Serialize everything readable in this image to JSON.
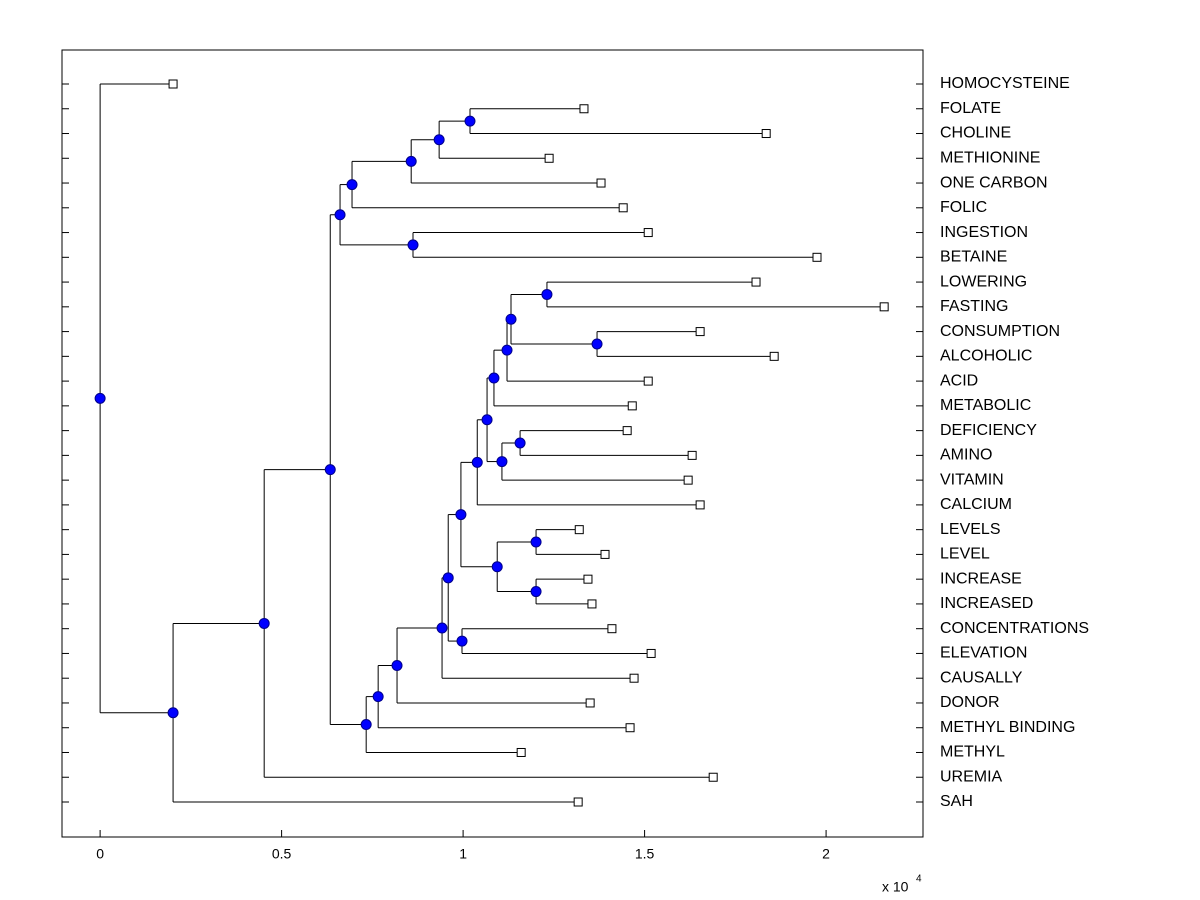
{
  "chart_data": {
    "type": "dendrogram",
    "xlim": [
      -0.105,
      2.267
    ],
    "xticks": [
      0,
      0.5,
      1,
      1.5,
      2
    ],
    "x_scale_label": "x 10",
    "x_scale_exponent": "4",
    "node_color": "#0000ff",
    "leaf_color": "#ffffff",
    "tree": {
      "x": 0,
      "children": [
        {
          "label": "HOMOCYSTEINE",
          "x": 0.201
        },
        {
          "x": 0.201,
          "children": [
            {
              "x": 0.452,
              "children": [
                {
                  "x": 0.634,
                  "children": [
                    {
                      "x": 0.661,
                      "children": [
                        {
                          "x": 0.694,
                          "children": [
                            {
                              "x": 0.857,
                              "children": [
                                {
                                  "x": 0.934,
                                  "children": [
                                    {
                                      "x": 1.019,
                                      "children": [
                                        {
                                          "label": "FOLATE",
                                          "x": 1.333
                                        },
                                        {
                                          "label": "CHOLINE",
                                          "x": 1.835
                                        }
                                      ]
                                    },
                                    {
                                      "label": "METHIONINE",
                                      "x": 1.237
                                    }
                                  ]
                                },
                                {
                                  "label": "ONE CARBON",
                                  "x": 1.38
                                }
                              ]
                            },
                            {
                              "label": "FOLIC",
                              "x": 1.441
                            }
                          ]
                        },
                        {
                          "x": 0.862,
                          "children": [
                            {
                              "label": "INGESTION",
                              "x": 1.51
                            },
                            {
                              "label": "BETAINE",
                              "x": 1.975
                            }
                          ]
                        }
                      ]
                    },
                    {
                      "x": 0.733,
                      "children": [
                        {
                          "x": 0.766,
                          "children": [
                            {
                              "x": 0.818,
                              "children": [
                                {
                                  "x": 0.942,
                                  "children": [
                                    {
                                      "x": 0.959,
                                      "children": [
                                        {
                                          "x": 0.994,
                                          "children": [
                                            {
                                              "x": 1.039,
                                              "children": [
                                                {
                                                  "x": 1.066,
                                                  "children": [
                                                    {
                                                      "x": 1.085,
                                                      "children": [
                                                        {
                                                          "x": 1.121,
                                                          "children": [
                                                            {
                                                              "x": 1.132,
                                                              "children": [
                                                                {
                                                                  "x": 1.231,
                                                                  "children": [
                                                                    {
                                                                      "label": "LOWERING",
                                                                      "x": 1.807
                                                                    },
                                                                    {
                                                                      "label": "FASTING",
                                                                      "x": 2.16
                                                                    }
                                                                  ]
                                                                },
                                                                {
                                                                  "x": 1.369,
                                                                  "children": [
                                                                    {
                                                                      "label": "CONSUMPTION",
                                                                      "x": 1.653
                                                                    },
                                                                    {
                                                                      "label": "ALCOHOLIC",
                                                                      "x": 1.857
                                                                    }
                                                                  ]
                                                                }
                                                              ]
                                                            },
                                                            {
                                                              "label": "ACID",
                                                              "x": 1.51
                                                            }
                                                          ]
                                                        },
                                                        {
                                                          "label": "METABOLIC",
                                                          "x": 1.466
                                                        }
                                                      ]
                                                    },
                                                    {
                                                      "x": 1.107,
                                                      "children": [
                                                        {
                                                          "x": 1.157,
                                                          "children": [
                                                            {
                                                              "label": "DEFICIENCY",
                                                              "x": 1.452
                                                            },
                                                            {
                                                              "label": "AMINO",
                                                              "x": 1.631
                                                            }
                                                          ]
                                                        },
                                                        {
                                                          "label": "VITAMIN",
                                                          "x": 1.62
                                                        }
                                                      ]
                                                    }
                                                  ]
                                                },
                                                {
                                                  "label": "CALCIUM",
                                                  "x": 1.653
                                                }
                                              ]
                                            },
                                            {
                                              "x": 1.094,
                                              "children": [
                                                {
                                                  "x": 1.201,
                                                  "children": [
                                                    {
                                                      "label": "LEVELS",
                                                      "x": 1.32
                                                    },
                                                    {
                                                      "label": "LEVEL",
                                                      "x": 1.391
                                                    }
                                                  ]
                                                },
                                                {
                                                  "x": 1.201,
                                                  "children": [
                                                    {
                                                      "label": "INCREASE",
                                                      "x": 1.344
                                                    },
                                                    {
                                                      "label": "INCREASED",
                                                      "x": 1.355
                                                    }
                                                  ]
                                                }
                                              ]
                                            }
                                          ]
                                        },
                                        {
                                          "x": 0.997,
                                          "children": [
                                            {
                                              "label": "CONCENTRATIONS",
                                              "x": 1.41
                                            },
                                            {
                                              "label": "ELEVATION",
                                              "x": 1.518
                                            }
                                          ]
                                        }
                                      ]
                                    },
                                    {
                                      "label": "CAUSALLY",
                                      "x": 1.471
                                    }
                                  ]
                                },
                                {
                                  "label": "DONOR",
                                  "x": 1.35
                                }
                              ]
                            },
                            {
                              "label": "METHYL BINDING",
                              "x": 1.46
                            }
                          ]
                        },
                        {
                          "label": "METHYL",
                          "x": 1.16
                        }
                      ]
                    }
                  ]
                },
                {
                  "label": "UREMIA",
                  "x": 1.689
                }
              ]
            },
            {
              "label": "SAH",
              "x": 1.317
            }
          ]
        }
      ]
    }
  }
}
